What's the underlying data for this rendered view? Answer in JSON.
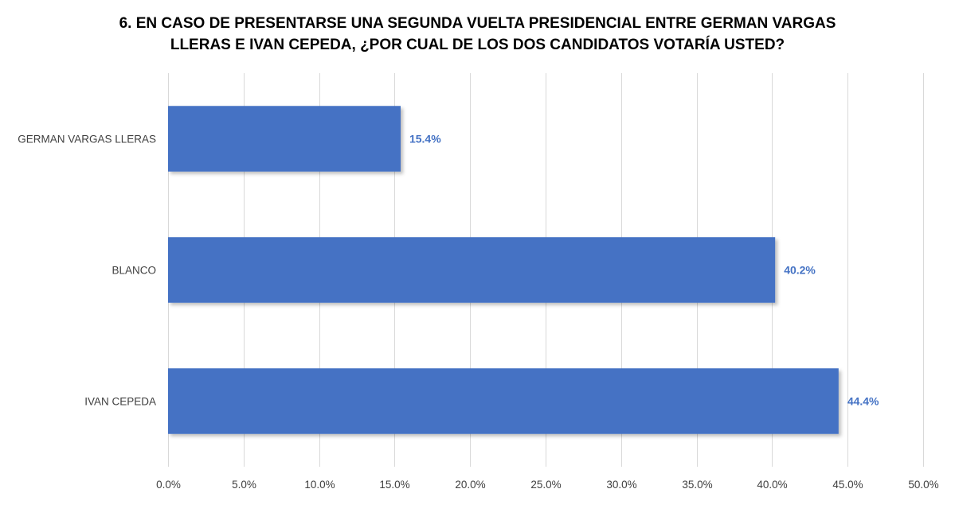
{
  "title_lines": [
    "6. EN CASO DE PRESENTARSE UNA SEGUNDA VUELTA PRESIDENCIAL ENTRE GERMAN VARGAS",
    "LLERAS E  IVAN CEPEDA, ¿POR CUAL DE LOS DOS CANDIDATOS VOTARÍA USTED?"
  ],
  "chart_data": {
    "type": "bar",
    "orientation": "horizontal",
    "title": "6. EN CASO DE PRESENTARSE UNA SEGUNDA VUELTA PRESIDENCIAL ENTRE GERMAN VARGAS LLERAS E  IVAN CEPEDA, ¿POR CUAL DE LOS DOS CANDIDATOS VOTARÍA USTED?",
    "categories": [
      "GERMAN VARGAS LLERAS",
      "BLANCO",
      "IVAN CEPEDA"
    ],
    "values": [
      15.4,
      40.2,
      44.4
    ],
    "data_labels": [
      "15.4%",
      "40.2%",
      "44.4%"
    ],
    "x_ticks": [
      "0.0%",
      "5.0%",
      "10.0%",
      "15.0%",
      "20.0%",
      "25.0%",
      "30.0%",
      "35.0%",
      "40.0%",
      "45.0%",
      "50.0%"
    ],
    "xlim": [
      0,
      50
    ],
    "xlabel": "",
    "ylabel": "",
    "grid": "vertical",
    "legend": "none",
    "colors": {
      "bar": "#4472C4",
      "data_label": "#4472C4",
      "gridline": "#D9D9D9",
      "text": "#404040"
    }
  }
}
